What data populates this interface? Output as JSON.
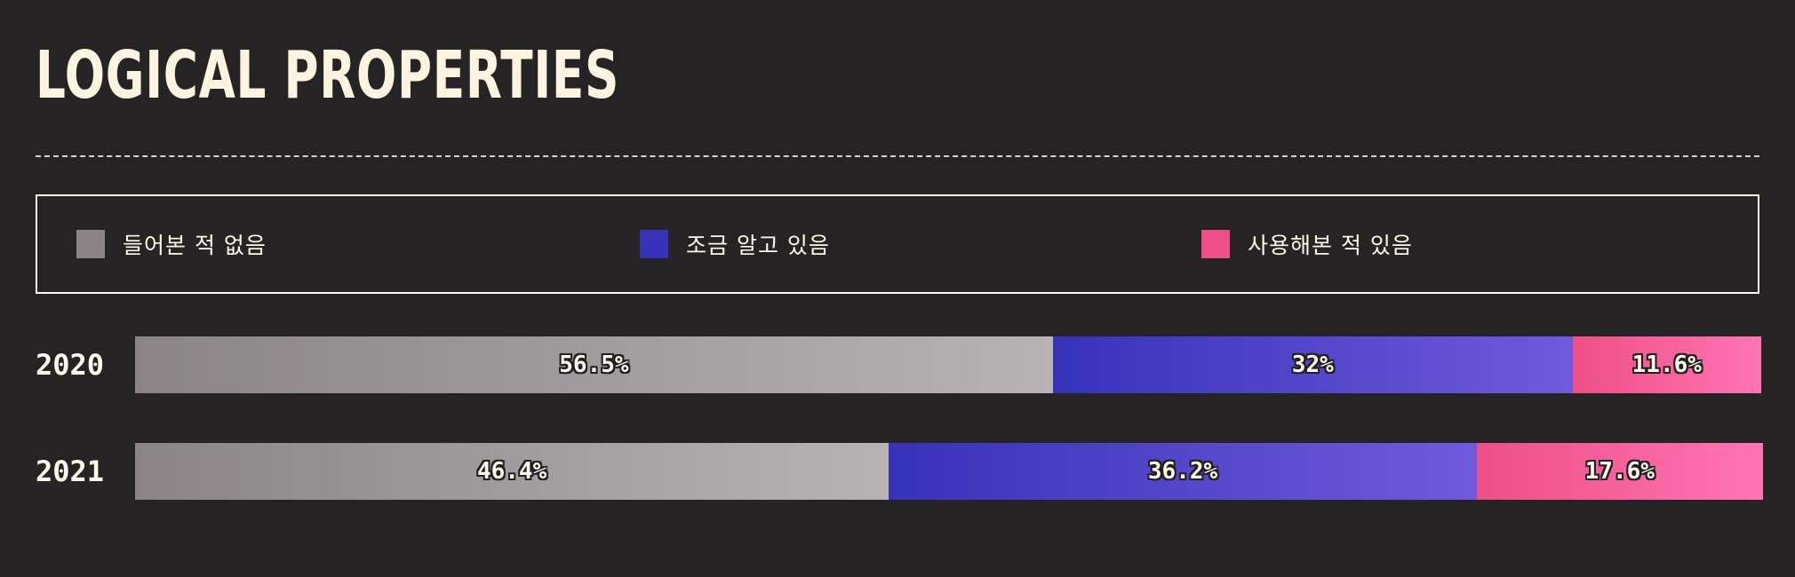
{
  "title": "LOGICAL PROPERTIES",
  "colors": {
    "never_heard": [
      "#8c8387",
      "#b9b1b4"
    ],
    "know_a_little": [
      "#3633b9",
      "#705adc"
    ],
    "used": [
      "#ee4f86",
      "#ff74b3"
    ]
  },
  "legend": [
    {
      "key": "never_heard",
      "label": "들어본 적 없음",
      "color": "#8c8387"
    },
    {
      "key": "know_a_little",
      "label": "조금 알고 있음",
      "color": "#3633b9"
    },
    {
      "key": "used",
      "label": "사용해본 적 있음",
      "color": "#ee4f86"
    }
  ],
  "chart_data": {
    "type": "bar",
    "orientation": "horizontal",
    "stacked": true,
    "title": "LOGICAL PROPERTIES",
    "categories": [
      "2020",
      "2021"
    ],
    "series": [
      {
        "name": "들어본 적 없음",
        "key": "never_heard",
        "values": [
          56.5,
          46.4
        ],
        "labels": [
          "56.5%",
          "46.4%"
        ]
      },
      {
        "name": "조금 알고 있음",
        "key": "know_a_little",
        "values": [
          32,
          36.2
        ],
        "labels": [
          "32%",
          "36.2%"
        ]
      },
      {
        "name": "사용해본 적 있음",
        "key": "used",
        "values": [
          11.6,
          17.6
        ],
        "labels": [
          "11.6%",
          "17.6%"
        ]
      }
    ],
    "xlim": [
      0,
      100
    ],
    "grid": false,
    "legend_position": "top"
  }
}
